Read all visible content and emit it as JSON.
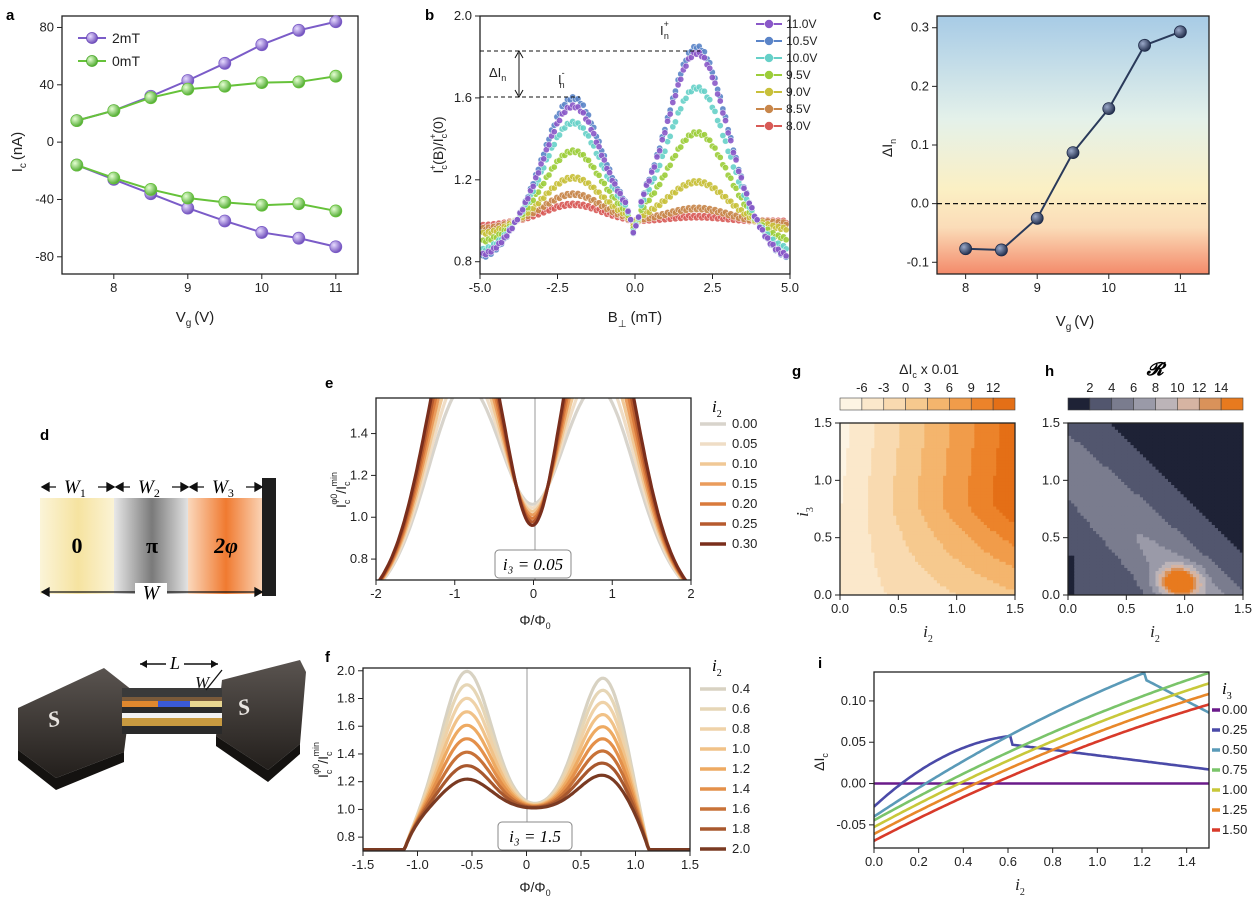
{
  "panels": {
    "a": {
      "label": "a"
    },
    "b": {
      "label": "b"
    },
    "c": {
      "label": "c"
    },
    "d": {
      "label": "d"
    },
    "e": {
      "label": "e"
    },
    "f": {
      "label": "f"
    },
    "g": {
      "label": "g"
    },
    "h": {
      "label": "h"
    },
    "i": {
      "label": "i"
    }
  },
  "schematic": {
    "w1": "W",
    "w1_sub": "1",
    "w2": "W",
    "w2_sub": "2",
    "w3": "W",
    "w3_sub": "3",
    "w": "W",
    "region_0": "0",
    "region_pi": "π",
    "region_2phi": "2φ",
    "l_label": "L",
    "w_label": "W",
    "s_label": "S",
    "colors": {
      "region_0": "#f7e7a8",
      "region_pi": "#9a9a9a",
      "region_2phi": "#f0803a"
    }
  },
  "chart_data": [
    {
      "id": "a",
      "type": "line",
      "xlabel": "V",
      "xlabel_sub": "g",
      "xunit": "(V)",
      "ylabel": "I",
      "ylabel_sub": "c",
      "yunit": "(nA)",
      "xlim": [
        7.3,
        11.3
      ],
      "ylim": [
        -92,
        88
      ],
      "xticks": [
        8,
        9,
        10,
        11
      ],
      "yticks": [
        -80,
        -40,
        0,
        40,
        80
      ],
      "x": [
        7.5,
        8,
        8.5,
        9,
        9.5,
        10,
        10.5,
        11
      ],
      "series": [
        {
          "name": "2mT",
          "color": "#7b5cc8",
          "values": [
            15,
            22,
            32,
            43,
            55,
            68,
            78,
            84
          ]
        },
        {
          "name": "0mT",
          "color": "#66c23a",
          "values": [
            15,
            22,
            31,
            37,
            39,
            41.5,
            42,
            46
          ]
        },
        {
          "name": "",
          "color": "#7b5cc8",
          "values": [
            -16,
            -26,
            -36,
            -46,
            -55,
            -63,
            -67,
            -73
          ]
        },
        {
          "name": "",
          "color": "#66c23a",
          "values": [
            -16,
            -25,
            -33,
            -39,
            -42,
            -44,
            -43,
            -48
          ]
        }
      ],
      "legend": "top-left"
    },
    {
      "id": "b",
      "type": "scatter",
      "xlabel": "B",
      "xlabel_sub": "⊥",
      "xunit": "(mT)",
      "ylabel": "I",
      "ylabel_parts": [
        "I",
        "c",
        "+",
        "(B)/I",
        "c",
        "+",
        "(0)"
      ],
      "xlim": [
        -5,
        5
      ],
      "ylim": [
        0.74,
        2.0
      ],
      "xticks": [
        -5.0,
        -2.5,
        0.0,
        2.5,
        5.0
      ],
      "xticklabels": [
        "-5.0",
        "-2.5",
        "0.0",
        "2.5",
        "5.0"
      ],
      "yticks": [
        0.8,
        1.2,
        1.6,
        2.0
      ],
      "yticklabels": [
        "0.8",
        "1.2",
        "1.6",
        "2.0"
      ],
      "series": [
        {
          "name": "11.0V",
          "color": "#8a58c8",
          "peak_neg": 1.56,
          "peak_pos": 1.82
        },
        {
          "name": "10.5V",
          "color": "#5a84c8",
          "peak_neg": 1.6,
          "peak_pos": 1.85
        },
        {
          "name": "10.0V",
          "color": "#66d0c8",
          "peak_neg": 1.48,
          "peak_pos": 1.65
        },
        {
          "name": "9.5V",
          "color": "#9ccd3a",
          "peak_neg": 1.34,
          "peak_pos": 1.43
        },
        {
          "name": "9.0V",
          "color": "#c8c03a",
          "peak_neg": 1.21,
          "peak_pos": 1.19
        },
        {
          "name": "8.5V",
          "color": "#c8864a",
          "peak_neg": 1.13,
          "peak_pos": 1.06
        },
        {
          "name": "8.0V",
          "color": "#d85a56",
          "peak_neg": 1.08,
          "peak_pos": 1.02
        }
      ],
      "annotations": {
        "i_plus": "I",
        "i_plus_sub": "n",
        "i_plus_sup": "+",
        "i_minus": "I",
        "i_minus_sub": "n",
        "i_minus_sup": "-",
        "delta": "ΔI",
        "delta_sub": "n",
        "level_hi": 1.83,
        "level_lo": 1.6
      },
      "legend": "top-right"
    },
    {
      "id": "c",
      "type": "line",
      "xlabel": "V",
      "xlabel_sub": "g",
      "xunit": "(V)",
      "ylabel": "ΔI",
      "ylabel_sub": "n",
      "xlim": [
        7.6,
        11.4
      ],
      "ylim": [
        -0.12,
        0.32
      ],
      "xticks": [
        8,
        9,
        10,
        11
      ],
      "yticks": [
        -0.1,
        0.0,
        0.1,
        0.2,
        0.3
      ],
      "yticklabels": [
        "-0.1",
        "0.0",
        "0.1",
        "0.2",
        "0.3"
      ],
      "x": [
        8,
        8.5,
        9,
        9.5,
        10,
        10.5,
        11
      ],
      "values": [
        -0.077,
        -0.079,
        -0.025,
        0.087,
        0.162,
        0.27,
        0.293
      ],
      "color": "#2a3a5a"
    },
    {
      "id": "e",
      "type": "line",
      "xlabel": "Φ/Φ",
      "xlabel_sub": "0",
      "ylabel_parts": [
        "I",
        "c",
        "φ0",
        "/I",
        "c",
        "min"
      ],
      "xlim": [
        -2,
        2
      ],
      "ylim": [
        0.7,
        1.57
      ],
      "xticks": [
        -2,
        -1,
        0,
        1,
        2
      ],
      "yticks": [
        0.8,
        1.0,
        1.2,
        1.4
      ],
      "yticklabels": [
        "0.8",
        "1.0",
        "1.2",
        "1.4"
      ],
      "legend_title": "i",
      "legend_title_sub": "2",
      "series": [
        {
          "name": "0.00",
          "color": "#d8d4cc"
        },
        {
          "name": "0.05",
          "color": "#efddc6"
        },
        {
          "name": "0.10",
          "color": "#f0c896"
        },
        {
          "name": "0.15",
          "color": "#ea9c5c"
        },
        {
          "name": "0.20",
          "color": "#d97a3c"
        },
        {
          "name": "0.25",
          "color": "#b65a2e"
        },
        {
          "name": "0.30",
          "color": "#7a2e1c"
        }
      ],
      "annotation": "i₃ = 0.05"
    },
    {
      "id": "f",
      "type": "line",
      "xlabel": "Φ/Φ",
      "xlabel_sub": "0",
      "ylabel_parts": [
        "I",
        "c",
        "φ0",
        "/I",
        "c",
        "min"
      ],
      "xlim": [
        -1.5,
        1.5
      ],
      "ylim": [
        0.7,
        2.02
      ],
      "xticks": [
        -1.5,
        -1.0,
        -0.5,
        0,
        0.5,
        1.0,
        1.5
      ],
      "xticklabels": [
        "-1.5",
        "-1.0",
        "-0.5",
        "0",
        "0.5",
        "1.0",
        "1.5"
      ],
      "yticks": [
        0.8,
        1.0,
        1.2,
        1.4,
        1.6,
        1.8,
        2.0
      ],
      "yticklabels": [
        "0.8",
        "1.0",
        "1.2",
        "1.4",
        "1.6",
        "1.8",
        "2.0"
      ],
      "legend_title": "i",
      "legend_title_sub": "2",
      "series": [
        {
          "name": "0.4",
          "color": "#d8d2c2"
        },
        {
          "name": "0.6",
          "color": "#e6d6b6"
        },
        {
          "name": "0.8",
          "color": "#efd2a8"
        },
        {
          "name": "1.0",
          "color": "#f1c288"
        },
        {
          "name": "1.2",
          "color": "#eeaa62"
        },
        {
          "name": "1.4",
          "color": "#e4904a"
        },
        {
          "name": "1.6",
          "color": "#c87238"
        },
        {
          "name": "1.8",
          "color": "#a8582e"
        },
        {
          "name": "2.0",
          "color": "#7a3a22"
        }
      ],
      "annotation": "i₃ = 1.5"
    },
    {
      "id": "g",
      "type": "heatmap",
      "title": "ΔI",
      "title_sub": "c",
      "title_rest": " x 0.01",
      "xlabel": "i",
      "xlabel_sub": "2",
      "ylabel": "i",
      "ylabel_sub": "3",
      "xlim": [
        0,
        1.5
      ],
      "ylim": [
        0,
        1.5
      ],
      "xticks": [
        0.0,
        0.5,
        1.0,
        1.5
      ],
      "yticks": [
        0.0,
        0.5,
        1.0,
        1.5
      ],
      "tickformat": [
        "0.0",
        "0.5",
        "1.0",
        "1.5"
      ],
      "colorbar_ticks": [
        "-6",
        "-3",
        "0",
        "3",
        "6",
        "9",
        "12"
      ],
      "colorbar_colors": [
        "#fdf4e3",
        "#fbe8cb",
        "#f9dab0",
        "#f6c98e",
        "#f4b56d",
        "#f19c4a",
        "#ec832a",
        "#e46f16"
      ]
    },
    {
      "id": "h",
      "type": "heatmap",
      "title": "𝓡",
      "xlabel": "i",
      "xlabel_sub": "2",
      "xlim": [
        0,
        1.5
      ],
      "ylim": [
        0,
        1.5
      ],
      "xticks": [
        0.0,
        0.5,
        1.0,
        1.5
      ],
      "yticks": [
        0.0,
        0.5,
        1.0,
        1.5
      ],
      "tickformat": [
        "0.0",
        "0.5",
        "1.0",
        "1.5"
      ],
      "colorbar_ticks": [
        "2",
        "4",
        "6",
        "8",
        "10",
        "12",
        "14"
      ],
      "colorbar_colors": [
        "#1e2236",
        "#52566e",
        "#7a7c8e",
        "#9a9aa8",
        "#bcb4b8",
        "#d6b4a2",
        "#d9925a",
        "#e87a1e"
      ]
    },
    {
      "id": "i",
      "type": "line",
      "xlabel": "i",
      "xlabel_sub": "2",
      "ylabel": "ΔI",
      "ylabel_sub": "c",
      "xlim": [
        0,
        1.5
      ],
      "ylim": [
        -0.078,
        0.135
      ],
      "xticks": [
        0.0,
        0.2,
        0.4,
        0.6,
        0.8,
        1.0,
        1.2,
        1.4
      ],
      "xticklabels": [
        "0.0",
        "0.2",
        "0.4",
        "0.6",
        "0.8",
        "1.0",
        "1.2",
        "1.4"
      ],
      "yticks": [
        -0.05,
        0.0,
        0.05,
        0.1
      ],
      "yticklabels": [
        "-0.05",
        "0.00",
        "0.05",
        "0.10"
      ],
      "legend_title": "i",
      "legend_title_sub": "3",
      "series": [
        {
          "name": "0.00",
          "color": "#6a1a8a"
        },
        {
          "name": "0.25",
          "color": "#4a4aa8"
        },
        {
          "name": "0.50",
          "color": "#5a9ab8"
        },
        {
          "name": "0.75",
          "color": "#7ac46a"
        },
        {
          "name": "1.00",
          "color": "#c8c83a"
        },
        {
          "name": "1.25",
          "color": "#e8882a"
        },
        {
          "name": "1.50",
          "color": "#d83a2a"
        }
      ]
    }
  ]
}
